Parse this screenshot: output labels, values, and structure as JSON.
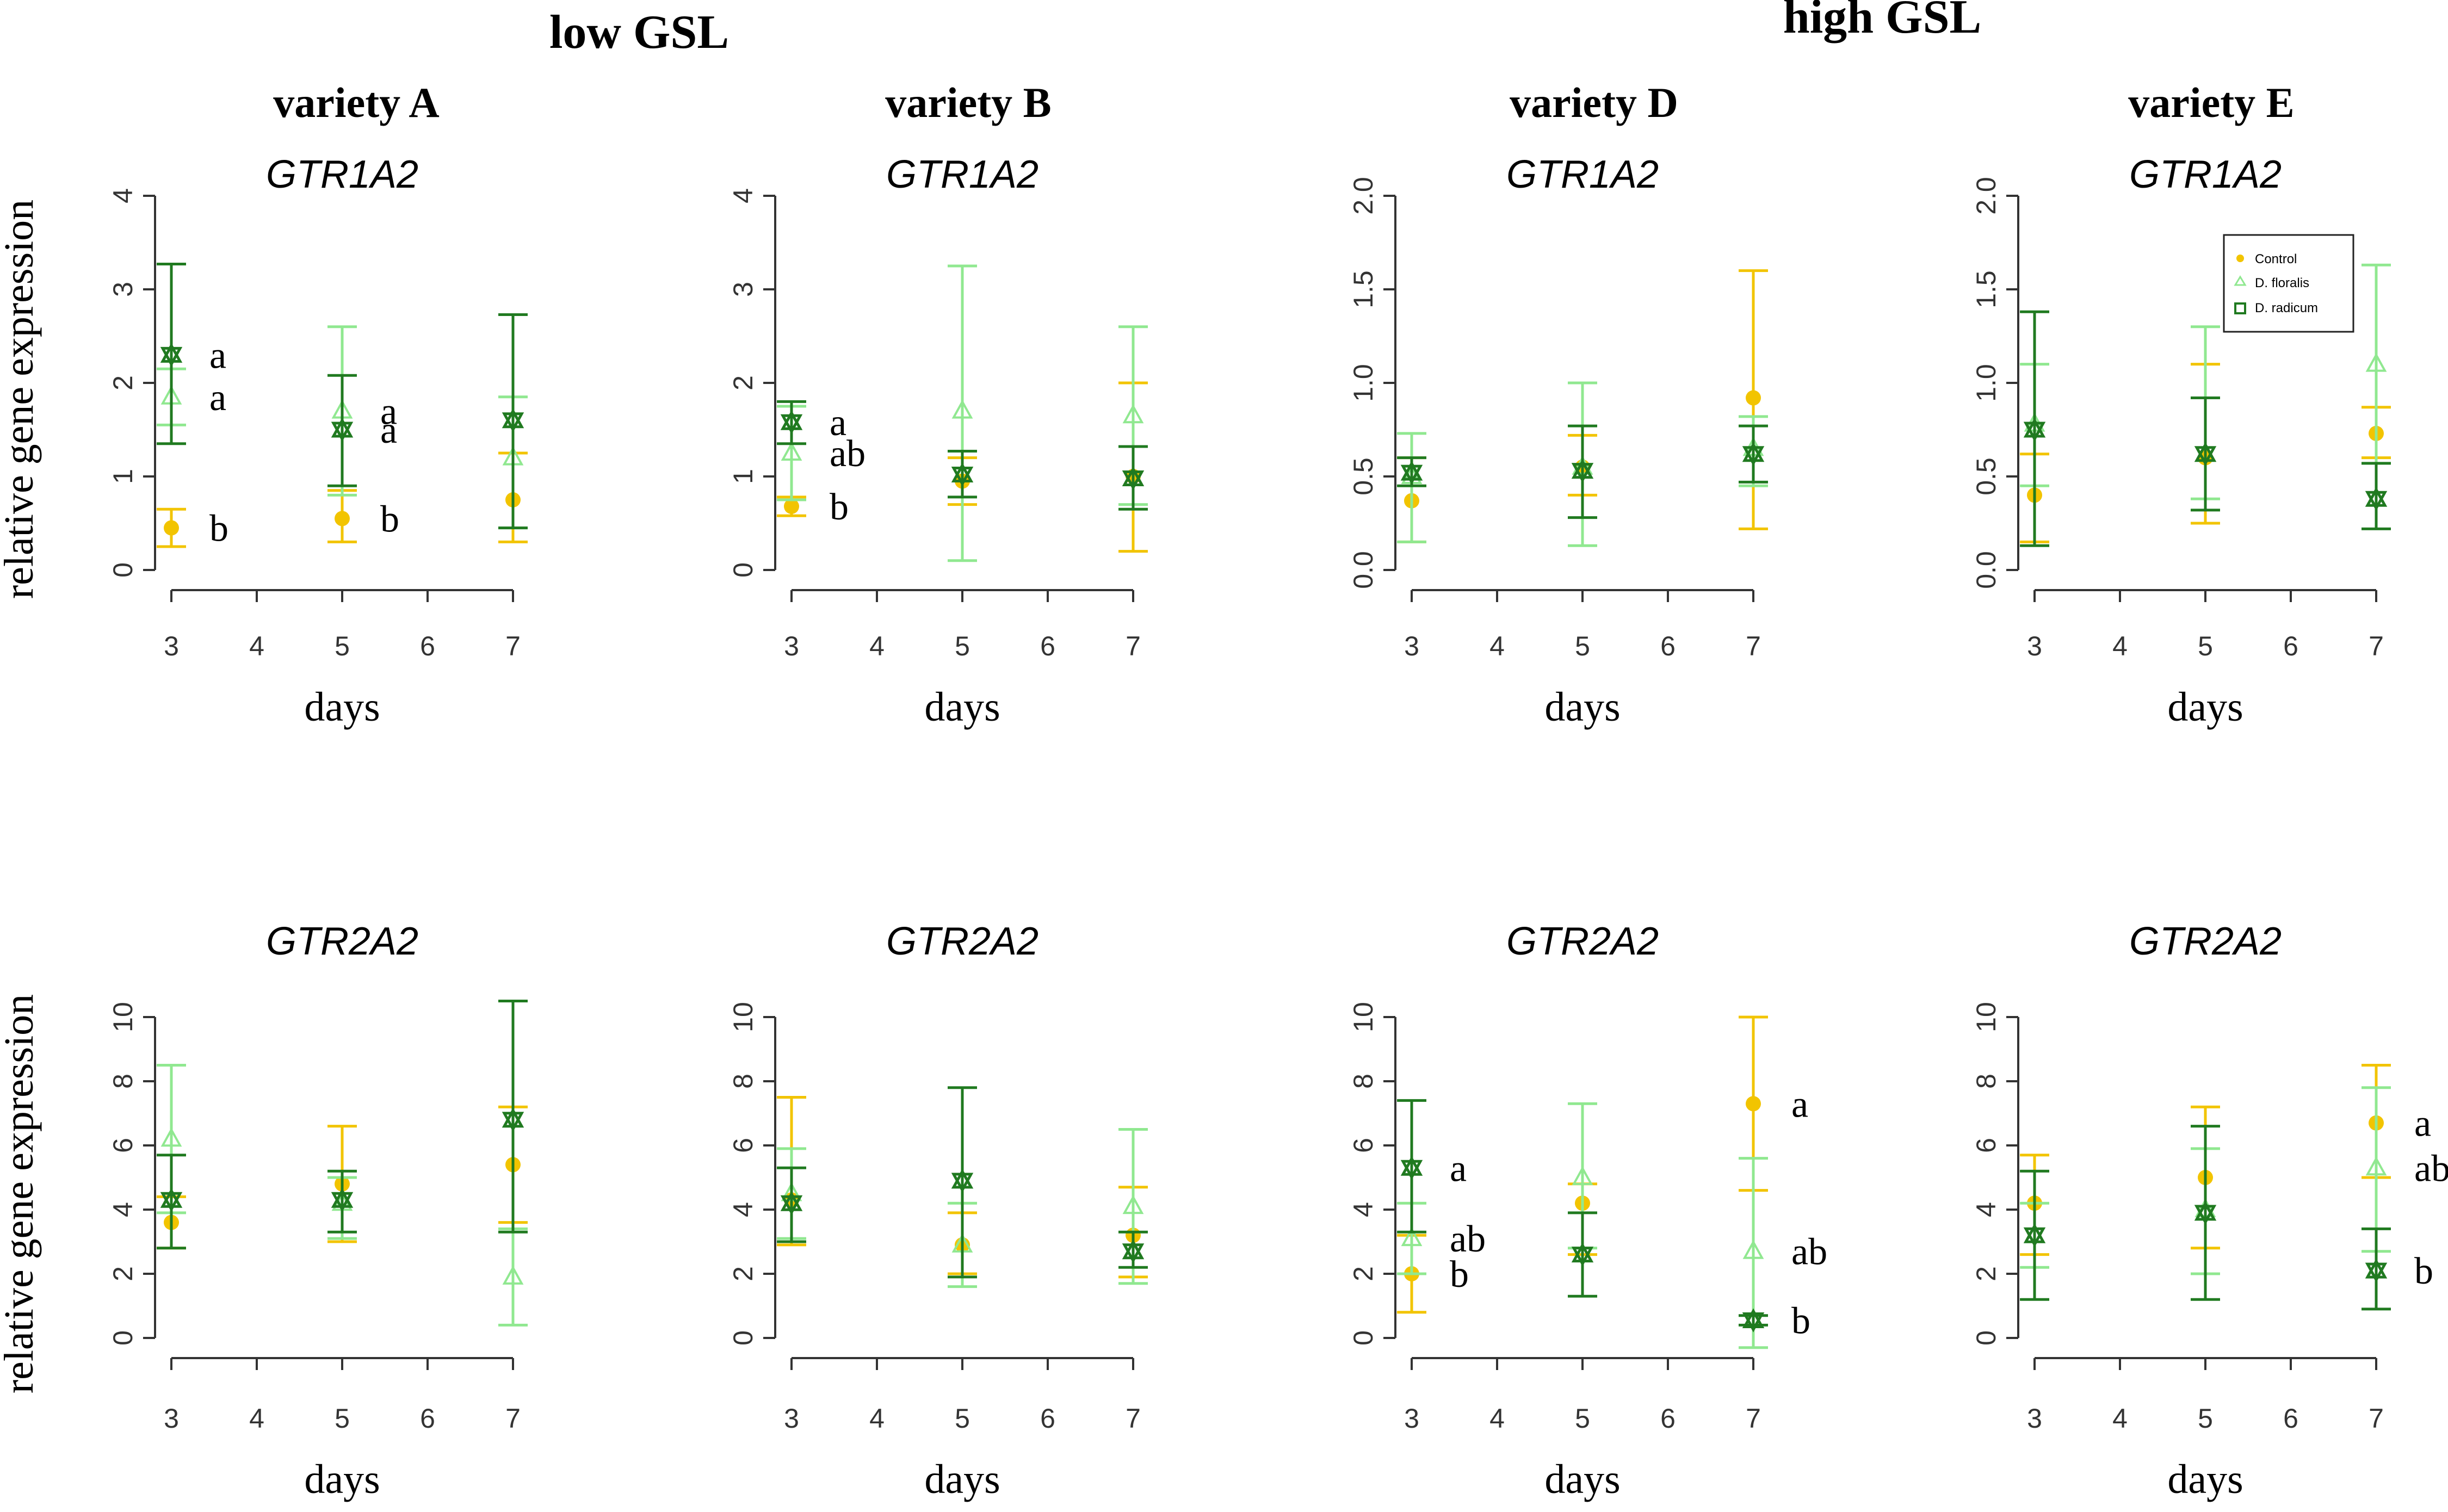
{
  "colors": {
    "control": "#f2c400",
    "d_floralis": "#90e890",
    "d_radicum": "#207a20",
    "axis": "#333333"
  },
  "group_titles": [
    "low GSL",
    "high GSL"
  ],
  "variety_titles": [
    "variety A",
    "variety B",
    "variety D",
    "variety E"
  ],
  "legend": [
    "Control",
    "D. floralis",
    "D. radicum"
  ],
  "chart_data": [
    {
      "id": "A1",
      "type": "scatter",
      "title": "GTR1A2",
      "ylabel": "relative gene expression",
      "xlabel": "days",
      "x_ticks": [
        3,
        4,
        5,
        6,
        7
      ],
      "ylim": [
        0,
        4
      ],
      "y_ticks": [
        "0",
        "1",
        "2",
        "3",
        "4"
      ],
      "series": [
        {
          "name": "Control",
          "points": [
            {
              "x": 3,
              "y": 0.45,
              "lo": 0.25,
              "hi": 0.65,
              "label": "b"
            },
            {
              "x": 5,
              "y": 0.55,
              "lo": 0.3,
              "hi": 0.85,
              "label": "b"
            },
            {
              "x": 7,
              "y": 0.75,
              "lo": 0.3,
              "hi": 1.25,
              "label": ""
            }
          ]
        },
        {
          "name": "D. floralis",
          "points": [
            {
              "x": 3,
              "y": 1.85,
              "lo": 1.55,
              "hi": 2.15,
              "label": "a"
            },
            {
              "x": 5,
              "y": 1.7,
              "lo": 0.8,
              "hi": 2.6,
              "label": "a"
            },
            {
              "x": 7,
              "y": 1.2,
              "lo": 0.45,
              "hi": 1.85,
              "label": ""
            }
          ]
        },
        {
          "name": "D. radicum",
          "points": [
            {
              "x": 3,
              "y": 2.3,
              "lo": 1.35,
              "hi": 3.27,
              "label": "a"
            },
            {
              "x": 5,
              "y": 1.5,
              "lo": 0.9,
              "hi": 2.08,
              "label": "a"
            },
            {
              "x": 7,
              "y": 1.6,
              "lo": 0.45,
              "hi": 2.73,
              "label": ""
            }
          ]
        }
      ]
    },
    {
      "id": "B1",
      "type": "scatter",
      "title": "GTR1A2",
      "ylabel": "",
      "xlabel": "days",
      "x_ticks": [
        3,
        4,
        5,
        6,
        7
      ],
      "ylim": [
        0,
        4
      ],
      "y_ticks": [
        "0",
        "1",
        "2",
        "3",
        "4"
      ],
      "series": [
        {
          "name": "Control",
          "points": [
            {
              "x": 3,
              "y": 0.68,
              "lo": 0.58,
              "hi": 0.78,
              "label": "b"
            },
            {
              "x": 5,
              "y": 0.95,
              "lo": 0.7,
              "hi": 1.2,
              "label": ""
            },
            {
              "x": 7,
              "y": 1.0,
              "lo": 0.2,
              "hi": 2.0,
              "label": ""
            }
          ]
        },
        {
          "name": "D. floralis",
          "points": [
            {
              "x": 3,
              "y": 1.25,
              "lo": 0.75,
              "hi": 1.75,
              "label": "ab"
            },
            {
              "x": 5,
              "y": 1.7,
              "lo": 0.1,
              "hi": 3.25,
              "label": ""
            },
            {
              "x": 7,
              "y": 1.65,
              "lo": 0.7,
              "hi": 2.6,
              "label": ""
            }
          ]
        },
        {
          "name": "D. radicum",
          "points": [
            {
              "x": 3,
              "y": 1.58,
              "lo": 1.35,
              "hi": 1.8,
              "label": "a"
            },
            {
              "x": 5,
              "y": 1.02,
              "lo": 0.78,
              "hi": 1.27,
              "label": ""
            },
            {
              "x": 7,
              "y": 0.98,
              "lo": 0.65,
              "hi": 1.32,
              "label": ""
            }
          ]
        }
      ]
    },
    {
      "id": "D1",
      "type": "scatter",
      "title": "GTR1A2",
      "ylabel": "",
      "xlabel": "days",
      "x_ticks": [
        3,
        4,
        5,
        6,
        7
      ],
      "ylim": [
        0,
        2.0
      ],
      "y_ticks": [
        "0.0",
        "0.5",
        "1.0",
        "1.5",
        "2.0"
      ],
      "series": [
        {
          "name": "Control",
          "points": [
            {
              "x": 3,
              "y": 0.37,
              "lo": 0.15,
              "hi": 0.6,
              "label": ""
            },
            {
              "x": 5,
              "y": 0.55,
              "lo": 0.4,
              "hi": 0.72,
              "label": ""
            },
            {
              "x": 7,
              "y": 0.92,
              "lo": 0.22,
              "hi": 1.6,
              "label": ""
            }
          ]
        },
        {
          "name": "D. floralis",
          "points": [
            {
              "x": 3,
              "y": 0.5,
              "lo": 0.15,
              "hi": 0.73,
              "label": ""
            },
            {
              "x": 5,
              "y": 0.55,
              "lo": 0.13,
              "hi": 1.0,
              "label": ""
            },
            {
              "x": 7,
              "y": 0.65,
              "lo": 0.45,
              "hi": 0.82,
              "label": ""
            }
          ]
        },
        {
          "name": "D. radicum",
          "points": [
            {
              "x": 3,
              "y": 0.52,
              "lo": 0.45,
              "hi": 0.6,
              "label": ""
            },
            {
              "x": 5,
              "y": 0.53,
              "lo": 0.28,
              "hi": 0.77,
              "label": ""
            },
            {
              "x": 7,
              "y": 0.62,
              "lo": 0.47,
              "hi": 0.77,
              "label": ""
            }
          ]
        }
      ]
    },
    {
      "id": "E1",
      "type": "scatter",
      "title": "GTR1A2",
      "ylabel": "",
      "xlabel": "days",
      "x_ticks": [
        3,
        4,
        5,
        6,
        7
      ],
      "ylim": [
        0,
        2.0
      ],
      "y_ticks": [
        "0.0",
        "0.5",
        "1.0",
        "1.5",
        "2.0"
      ],
      "series": [
        {
          "name": "Control",
          "points": [
            {
              "x": 3,
              "y": 0.4,
              "lo": 0.15,
              "hi": 0.62,
              "label": ""
            },
            {
              "x": 5,
              "y": 0.6,
              "lo": 0.25,
              "hi": 1.1,
              "label": ""
            },
            {
              "x": 7,
              "y": 0.73,
              "lo": 0.6,
              "hi": 0.87,
              "label": ""
            }
          ]
        },
        {
          "name": "D. floralis",
          "points": [
            {
              "x": 3,
              "y": 0.78,
              "lo": 0.45,
              "hi": 1.1,
              "label": ""
            },
            {
              "x": 5,
              "y": 0.62,
              "lo": 0.38,
              "hi": 1.3,
              "label": ""
            },
            {
              "x": 7,
              "y": 1.1,
              "lo": 0.57,
              "hi": 1.63,
              "label": ""
            }
          ]
        },
        {
          "name": "D. radicum",
          "points": [
            {
              "x": 3,
              "y": 0.75,
              "lo": 0.13,
              "hi": 1.38,
              "label": ""
            },
            {
              "x": 5,
              "y": 0.62,
              "lo": 0.32,
              "hi": 0.92,
              "label": ""
            },
            {
              "x": 7,
              "y": 0.38,
              "lo": 0.22,
              "hi": 0.57,
              "label": ""
            }
          ]
        }
      ]
    },
    {
      "id": "A2",
      "type": "scatter",
      "title": "GTR2A2",
      "ylabel": "relative gene expression",
      "xlabel": "days",
      "x_ticks": [
        3,
        4,
        5,
        6,
        7
      ],
      "ylim": [
        0,
        10
      ],
      "y_ticks": [
        "0",
        "2",
        "4",
        "6",
        "8",
        "10"
      ],
      "series": [
        {
          "name": "Control",
          "points": [
            {
              "x": 3,
              "y": 3.6,
              "lo": 2.8,
              "hi": 4.4,
              "label": ""
            },
            {
              "x": 5,
              "y": 4.8,
              "lo": 3.0,
              "hi": 6.6,
              "label": ""
            },
            {
              "x": 7,
              "y": 5.4,
              "lo": 3.6,
              "hi": 7.2,
              "label": ""
            }
          ]
        },
        {
          "name": "D. floralis",
          "points": [
            {
              "x": 3,
              "y": 6.2,
              "lo": 3.9,
              "hi": 8.5,
              "label": ""
            },
            {
              "x": 5,
              "y": 4.2,
              "lo": 3.1,
              "hi": 5.0,
              "label": ""
            },
            {
              "x": 7,
              "y": 1.9,
              "lo": 0.4,
              "hi": 3.4,
              "label": ""
            }
          ]
        },
        {
          "name": "D. radicum",
          "points": [
            {
              "x": 3,
              "y": 4.3,
              "lo": 2.8,
              "hi": 5.7,
              "label": ""
            },
            {
              "x": 5,
              "y": 4.3,
              "lo": 3.3,
              "hi": 5.2,
              "label": ""
            },
            {
              "x": 7,
              "y": 6.8,
              "lo": 3.3,
              "hi": 10.5,
              "label": ""
            }
          ]
        }
      ]
    },
    {
      "id": "B2",
      "type": "scatter",
      "title": "GTR2A2",
      "ylabel": "",
      "xlabel": "days",
      "x_ticks": [
        3,
        4,
        5,
        6,
        7
      ],
      "ylim": [
        0,
        10
      ],
      "y_ticks": [
        "0",
        "2",
        "4",
        "6",
        "8",
        "10"
      ],
      "series": [
        {
          "name": "Control",
          "points": [
            {
              "x": 3,
              "y": 4.3,
              "lo": 2.9,
              "hi": 7.5,
              "label": ""
            },
            {
              "x": 5,
              "y": 2.9,
              "lo": 2.0,
              "hi": 3.9,
              "label": ""
            },
            {
              "x": 7,
              "y": 3.2,
              "lo": 1.9,
              "hi": 4.7,
              "label": ""
            }
          ]
        },
        {
          "name": "D. floralis",
          "points": [
            {
              "x": 3,
              "y": 4.5,
              "lo": 3.1,
              "hi": 5.9,
              "label": ""
            },
            {
              "x": 5,
              "y": 2.9,
              "lo": 1.6,
              "hi": 4.2,
              "label": ""
            },
            {
              "x": 7,
              "y": 4.1,
              "lo": 1.7,
              "hi": 6.5,
              "label": ""
            }
          ]
        },
        {
          "name": "D. radicum",
          "points": [
            {
              "x": 3,
              "y": 4.2,
              "lo": 3.0,
              "hi": 5.3,
              "label": ""
            },
            {
              "x": 5,
              "y": 4.9,
              "lo": 1.9,
              "hi": 7.8,
              "label": ""
            },
            {
              "x": 7,
              "y": 2.7,
              "lo": 2.2,
              "hi": 3.3,
              "label": ""
            }
          ]
        }
      ]
    },
    {
      "id": "D2",
      "type": "scatter",
      "title": "GTR2A2",
      "ylabel": "",
      "xlabel": "days",
      "x_ticks": [
        3,
        4,
        5,
        6,
        7
      ],
      "ylim": [
        0,
        10
      ],
      "y_ticks": [
        "0",
        "2",
        "4",
        "6",
        "8",
        "10"
      ],
      "series": [
        {
          "name": "Control",
          "points": [
            {
              "x": 3,
              "y": 2.0,
              "lo": 0.8,
              "hi": 3.2,
              "label": "b"
            },
            {
              "x": 5,
              "y": 4.2,
              "lo": 2.6,
              "hi": 4.8,
              "label": ""
            },
            {
              "x": 7,
              "y": 7.3,
              "lo": 4.6,
              "hi": 10.0,
              "label": "a"
            }
          ]
        },
        {
          "name": "D. floralis",
          "points": [
            {
              "x": 3,
              "y": 3.1,
              "lo": 2.0,
              "hi": 4.2,
              "label": "ab"
            },
            {
              "x": 5,
              "y": 5.0,
              "lo": 2.8,
              "hi": 7.3,
              "label": ""
            },
            {
              "x": 7,
              "y": 2.7,
              "lo": -0.3,
              "hi": 5.6,
              "label": "ab"
            }
          ]
        },
        {
          "name": "D. radicum",
          "points": [
            {
              "x": 3,
              "y": 5.3,
              "lo": 3.3,
              "hi": 7.4,
              "label": "a"
            },
            {
              "x": 5,
              "y": 2.6,
              "lo": 1.3,
              "hi": 3.9,
              "label": ""
            },
            {
              "x": 7,
              "y": 0.55,
              "lo": 0.4,
              "hi": 0.7,
              "label": "b"
            }
          ]
        }
      ]
    },
    {
      "id": "E2",
      "type": "scatter",
      "title": "GTR2A2",
      "ylabel": "",
      "xlabel": "days",
      "x_ticks": [
        3,
        4,
        5,
        6,
        7
      ],
      "ylim": [
        0,
        10
      ],
      "y_ticks": [
        "0",
        "2",
        "4",
        "6",
        "8",
        "10"
      ],
      "series": [
        {
          "name": "Control",
          "points": [
            {
              "x": 3,
              "y": 4.2,
              "lo": 2.6,
              "hi": 5.7,
              "label": ""
            },
            {
              "x": 5,
              "y": 5.0,
              "lo": 2.8,
              "hi": 7.2,
              "label": ""
            },
            {
              "x": 7,
              "y": 6.7,
              "lo": 5.0,
              "hi": 8.5,
              "label": "a"
            }
          ]
        },
        {
          "name": "D. floralis",
          "points": [
            {
              "x": 3,
              "y": 3.2,
              "lo": 2.2,
              "hi": 4.2,
              "label": ""
            },
            {
              "x": 5,
              "y": 4.0,
              "lo": 2.0,
              "hi": 5.9,
              "label": ""
            },
            {
              "x": 7,
              "y": 5.3,
              "lo": 2.7,
              "hi": 7.8,
              "label": "ab"
            }
          ]
        },
        {
          "name": "D. radicum",
          "points": [
            {
              "x": 3,
              "y": 3.2,
              "lo": 1.2,
              "hi": 5.2,
              "label": ""
            },
            {
              "x": 5,
              "y": 3.9,
              "lo": 1.2,
              "hi": 6.6,
              "label": ""
            },
            {
              "x": 7,
              "y": 2.1,
              "lo": 0.9,
              "hi": 3.4,
              "label": "b"
            }
          ]
        }
      ]
    }
  ]
}
